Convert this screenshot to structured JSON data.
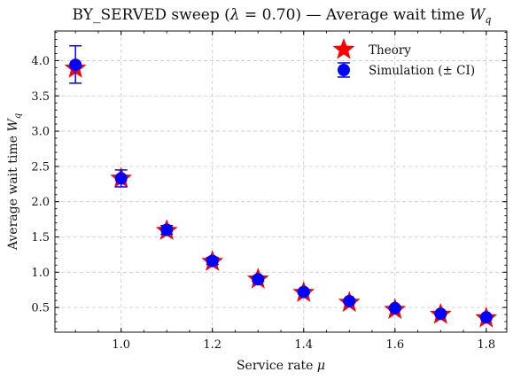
{
  "chart_data": {
    "type": "scatter",
    "title_main": "BY_SERVED sweep (",
    "title_lambda": "λ",
    "title_equals": " = 0.70) — Average wait time ",
    "title_W": "W",
    "title_q": "q",
    "xlabel_text": "Service rate ",
    "xlabel_mu": "μ",
    "ylabel_text": "Average wait time ",
    "ylabel_W": "W",
    "ylabel_q": "q",
    "xlim": [
      0.855,
      1.845
    ],
    "ylim": [
      0.15,
      4.42
    ],
    "xticks": [
      1.0,
      1.2,
      1.4,
      1.6,
      1.8
    ],
    "xtick_labels": [
      "1.0",
      "1.2",
      "1.4",
      "1.6",
      "1.8"
    ],
    "yticks": [
      0.5,
      1.0,
      1.5,
      2.0,
      2.5,
      3.0,
      3.5,
      4.0
    ],
    "ytick_labels": [
      "0.5",
      "1.0",
      "1.5",
      "2.0",
      "2.5",
      "3.0",
      "3.5",
      "4.0"
    ],
    "grid": true,
    "legend_position": "top-right",
    "x": [
      0.9,
      1.0,
      1.1,
      1.2,
      1.3,
      1.4,
      1.5,
      1.6,
      1.7,
      1.8
    ],
    "series": [
      {
        "name": "Theory",
        "marker": "star",
        "color": "#ff0000",
        "values": [
          3.89,
          2.33,
          1.59,
          1.15,
          0.9,
          0.71,
          0.57,
          0.47,
          0.4,
          0.35
        ]
      },
      {
        "name": "Simulation (± CI)",
        "marker": "circle",
        "color": "#0000ff",
        "values": [
          3.94,
          2.33,
          1.6,
          1.16,
          0.9,
          0.72,
          0.59,
          0.49,
          0.41,
          0.36
        ],
        "ci_low": [
          3.68,
          2.21,
          1.54,
          1.11,
          0.87,
          0.7,
          0.57,
          0.47,
          0.4,
          0.35
        ],
        "ci_high": [
          4.21,
          2.45,
          1.66,
          1.21,
          0.93,
          0.74,
          0.61,
          0.51,
          0.42,
          0.37
        ]
      }
    ]
  }
}
